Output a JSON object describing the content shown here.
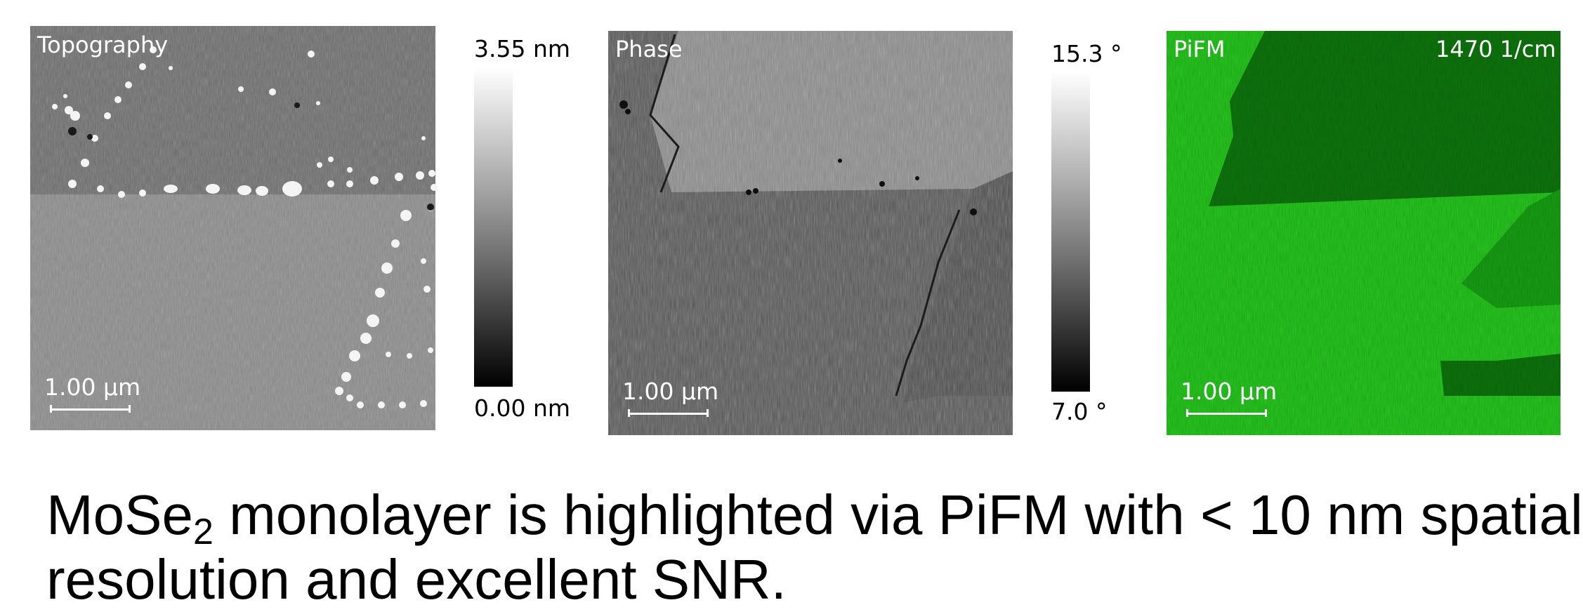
{
  "panels": {
    "topography": {
      "label": "Topography",
      "scale_label": "1.00 µm",
      "colorbar_max": "3.55 nm",
      "colorbar_min": "0.00 nm"
    },
    "phase": {
      "label": "Phase",
      "scale_label": "1.00 µm",
      "colorbar_max": "15.3 °",
      "colorbar_min": "7.0 °"
    },
    "pifm": {
      "label": "PiFM",
      "wavenumber": "1470 1/cm",
      "scale_label": "1.00 µm",
      "color": "#22c41c"
    }
  },
  "caption": {
    "part1": "MoSe",
    "subscript": "2",
    "part2": " monolayer is highlighted via PiFM with < 10 nm spatial",
    "line2": "resolution and excellent SNR."
  }
}
